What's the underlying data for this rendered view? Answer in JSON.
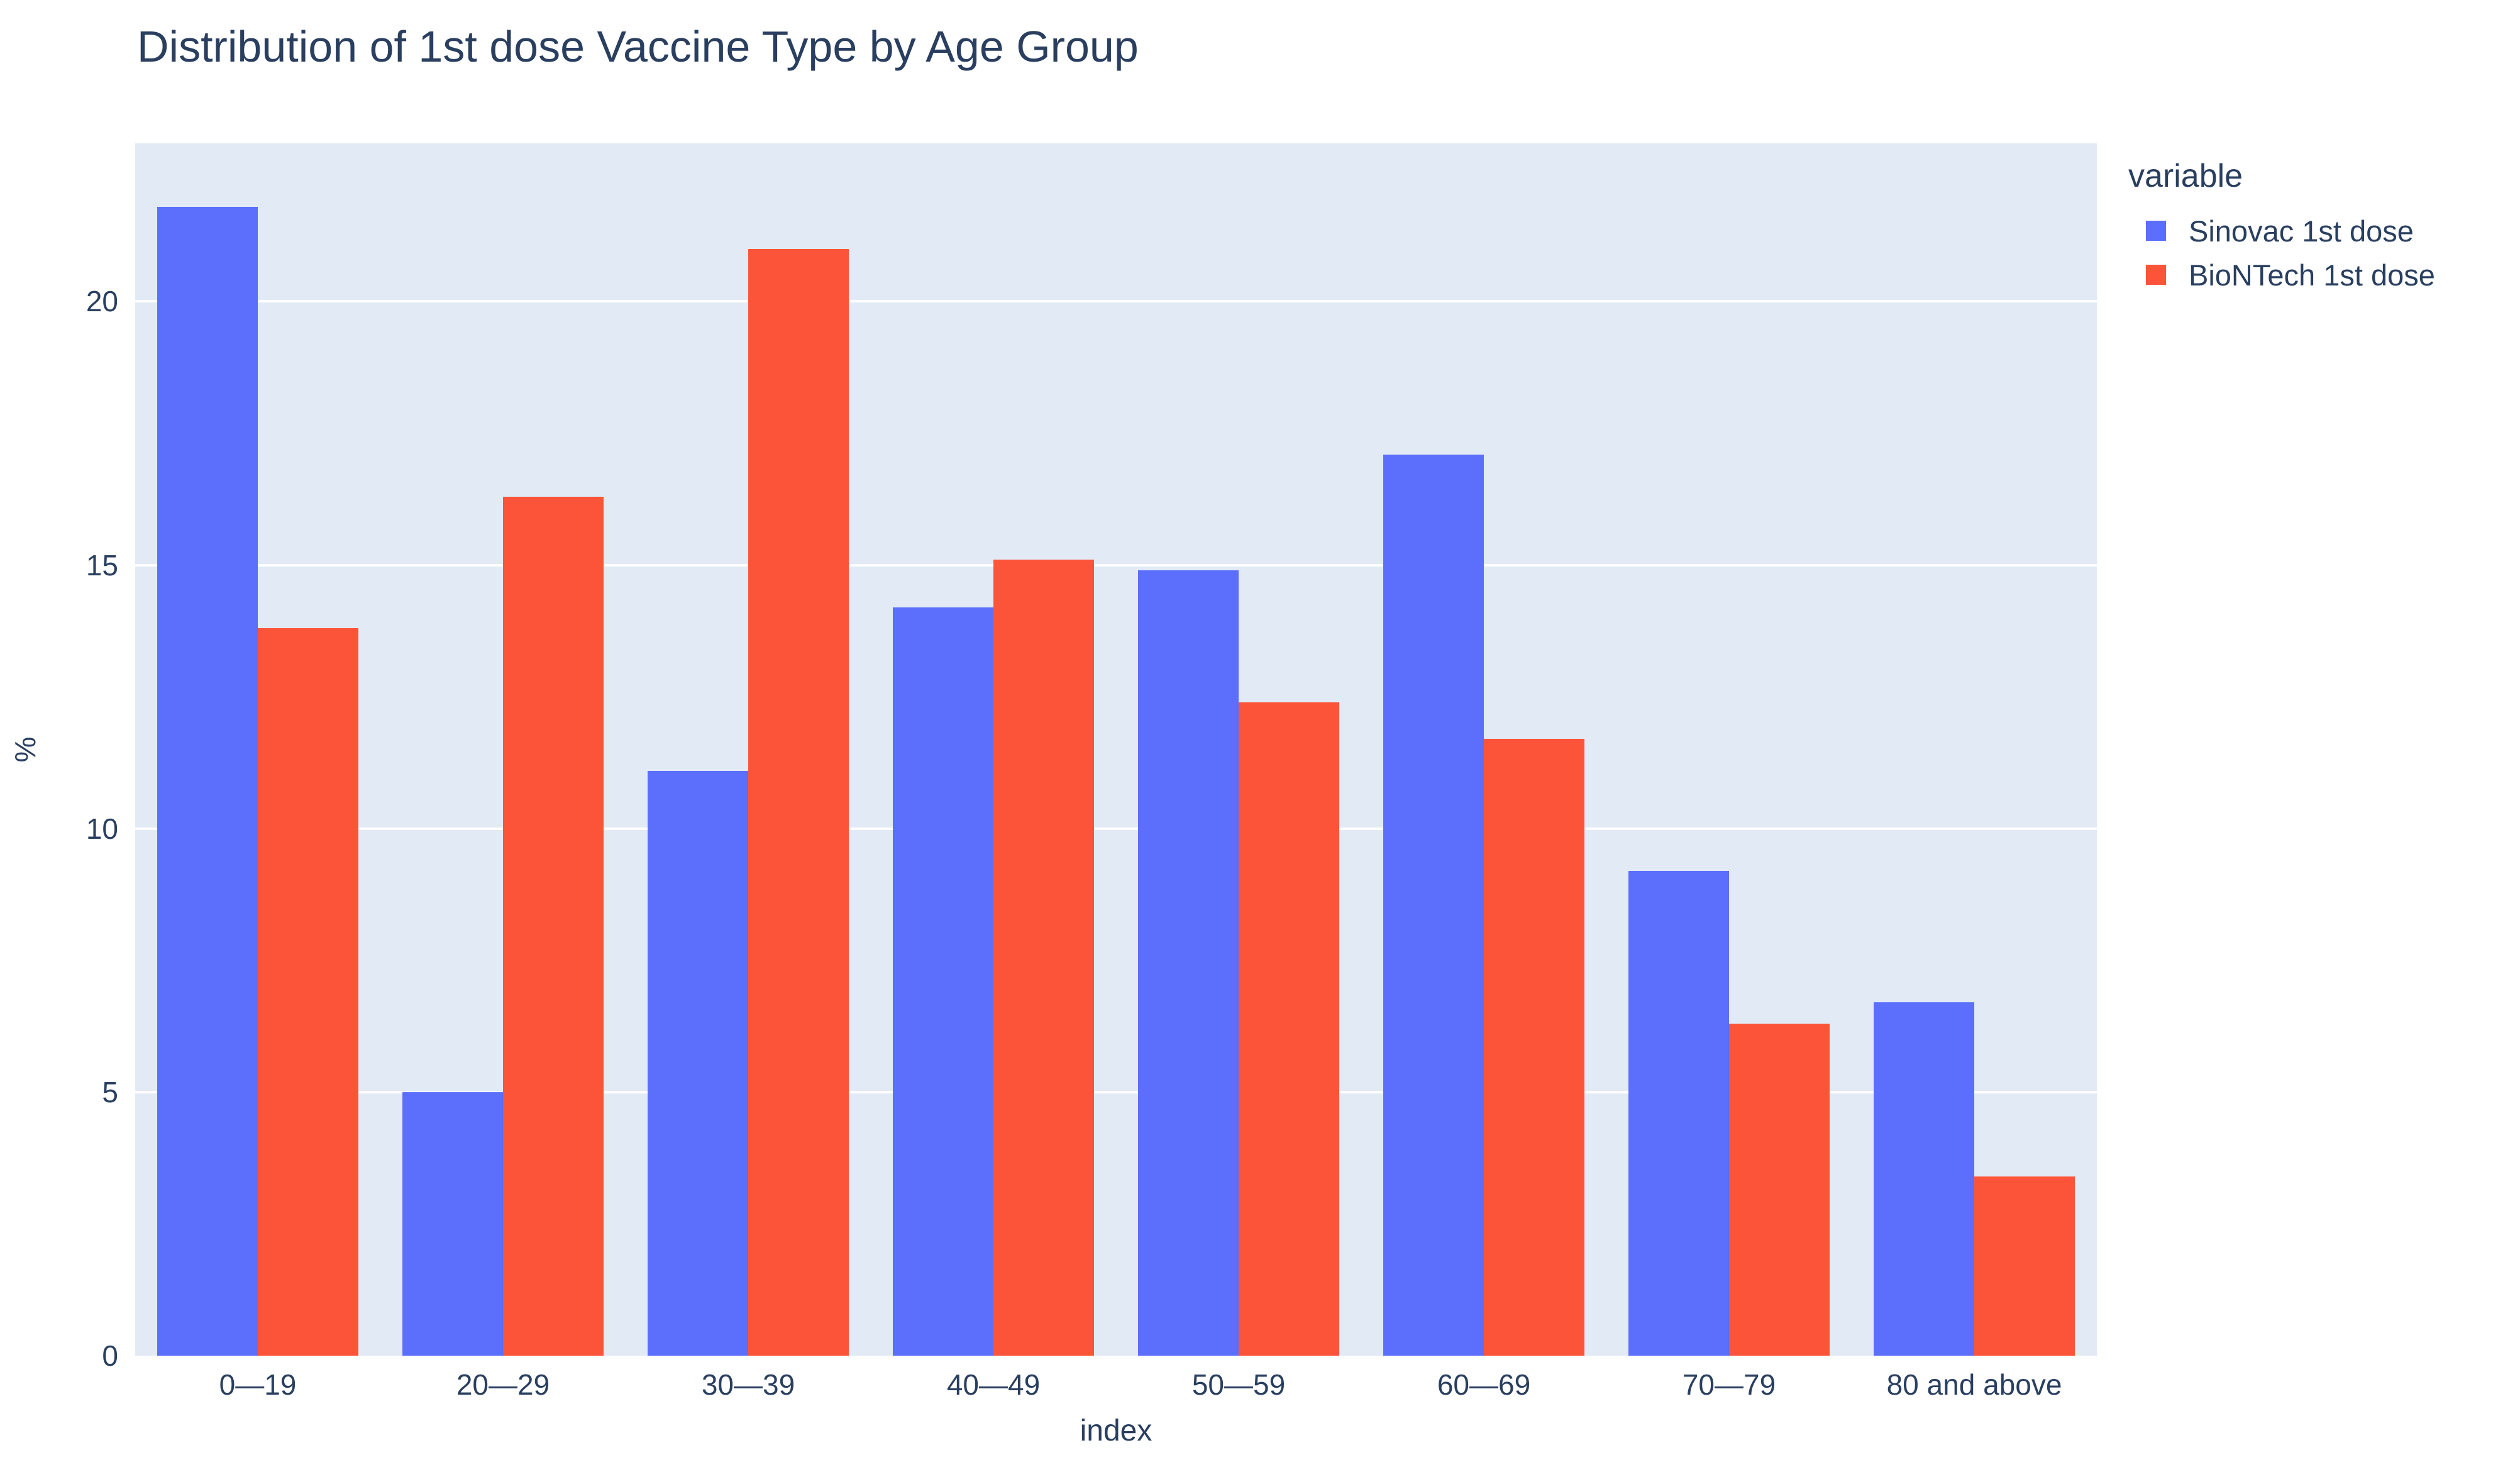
{
  "title": "Distribution of 1st dose Vaccine Type by Age Group",
  "colors": {
    "sinovac": "#5b6efc",
    "biontech": "#fc5439",
    "plot_background": "#e2eaf5",
    "gridline": "#ffffff",
    "text": "#2a3f5f"
  },
  "chart_data": {
    "type": "bar",
    "title": "Distribution of 1st dose Vaccine Type by Age Group",
    "xlabel": "index",
    "ylabel": "%",
    "categories": [
      "0—19",
      "20—29",
      "30—39",
      "40—49",
      "50—59",
      "60—69",
      "70—79",
      "80 and above"
    ],
    "series": [
      {
        "name": "Sinovac 1st dose",
        "color": "#5b6efc",
        "values": [
          21.8,
          5.0,
          11.1,
          14.2,
          14.9,
          17.1,
          9.2,
          6.7
        ]
      },
      {
        "name": "BioNTech 1st dose",
        "color": "#fc5439",
        "values": [
          13.8,
          16.3,
          21.0,
          15.1,
          12.4,
          11.7,
          6.3,
          3.4
        ]
      }
    ],
    "ylim": [
      0,
      23
    ],
    "yticks": [
      0,
      5,
      10,
      15,
      20
    ],
    "ytick_labels": [
      "0",
      "5",
      "10",
      "15",
      "20"
    ],
    "grid": true,
    "legend_title": "variable",
    "legend_position": "right"
  },
  "legend": {
    "title": "variable",
    "items": [
      {
        "label": "Sinovac 1st dose",
        "color": "#5b6efc"
      },
      {
        "label": "BioNTech 1st dose",
        "color": "#fc5439"
      }
    ]
  }
}
